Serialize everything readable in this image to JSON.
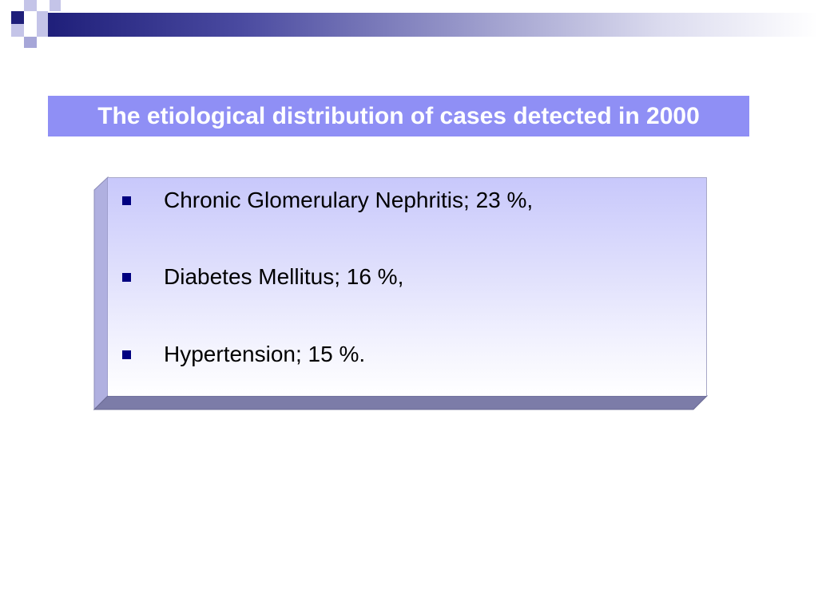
{
  "colors": {
    "band_dark": "#1f1f7a",
    "title_bg": "#8f8ff5",
    "bullet": "#000080",
    "box_side": "#b0b0e0",
    "box_bottom": "#7c7ca8"
  },
  "slide": {
    "title": "The etiological distribution of cases detected in 2000",
    "bullets": [
      {
        "text": "Chronic Glomerulary Nephritis; 23 %,"
      },
      {
        "text": "Diabetes Mellitus; 16 %,"
      },
      {
        "text": "Hypertension; 15 %."
      }
    ]
  },
  "icons": {
    "bullet": "square-bullet-icon"
  }
}
